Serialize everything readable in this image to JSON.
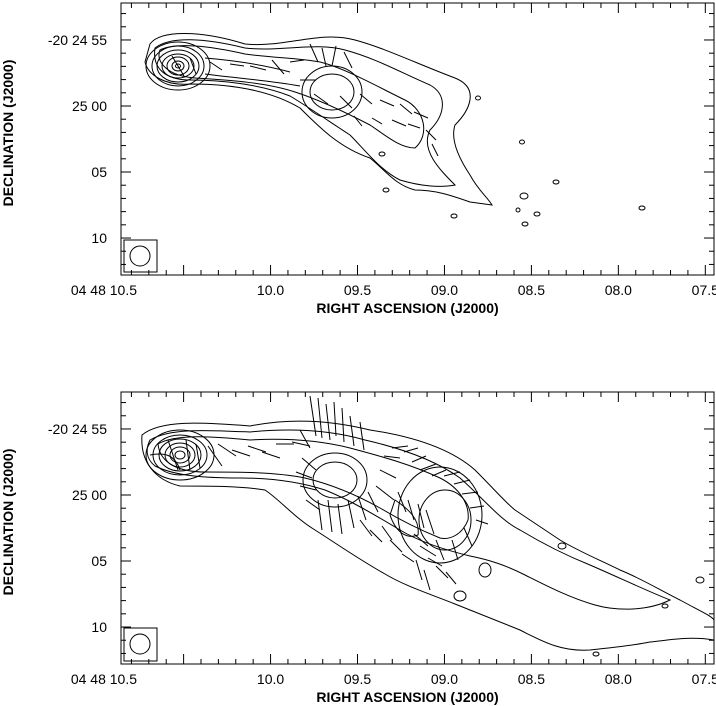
{
  "chart_data": [
    {
      "type": "contour",
      "xlabel": "RIGHT ASCENSION (J2000)",
      "ylabel": "DECLINATION (J2000)",
      "xticks": [
        {
          "ra_s": 10.5,
          "label": "04 48 10.5"
        },
        {
          "ra_s": 10.0,
          "label": "10.0"
        },
        {
          "ra_s": 9.5,
          "label": "09.5"
        },
        {
          "ra_s": 9.0,
          "label": "09.0"
        },
        {
          "ra_s": 8.5,
          "label": "08.5"
        },
        {
          "ra_s": 8.0,
          "label": "08.0"
        },
        {
          "ra_s": 7.5,
          "label": "07.5"
        }
      ],
      "yticks": [
        {
          "dec_s": 55,
          "label": "-20 24 55"
        },
        {
          "dec_s": 60,
          "label": "25 00"
        },
        {
          "dec_s": 65,
          "label": "05"
        },
        {
          "dec_s": 70,
          "label": "10"
        }
      ],
      "xlim": [
        10.86,
        7.45
      ],
      "ylim": [
        72.8,
        52.2
      ],
      "beam": "circle"
    },
    {
      "type": "contour",
      "xlabel": "RIGHT ASCENSION (J2000)",
      "ylabel": "DECLINATION (J2000)",
      "xticks": [
        {
          "ra_s": 10.5,
          "label": "04 48 10.5"
        },
        {
          "ra_s": 10.0,
          "label": "10.0"
        },
        {
          "ra_s": 9.5,
          "label": "09.5"
        },
        {
          "ra_s": 9.0,
          "label": "09.0"
        },
        {
          "ra_s": 8.5,
          "label": "08.5"
        },
        {
          "ra_s": 8.0,
          "label": "08.0"
        },
        {
          "ra_s": 7.5,
          "label": "07.5"
        }
      ],
      "yticks": [
        {
          "dec_s": 55,
          "label": "-20 24 55"
        },
        {
          "dec_s": 60,
          "label": "25 00"
        },
        {
          "dec_s": 65,
          "label": "05"
        },
        {
          "dec_s": 70,
          "label": "10"
        }
      ],
      "xlim": [
        10.86,
        7.45
      ],
      "ylim": [
        72.8,
        52.2
      ],
      "beam": "circle"
    }
  ]
}
